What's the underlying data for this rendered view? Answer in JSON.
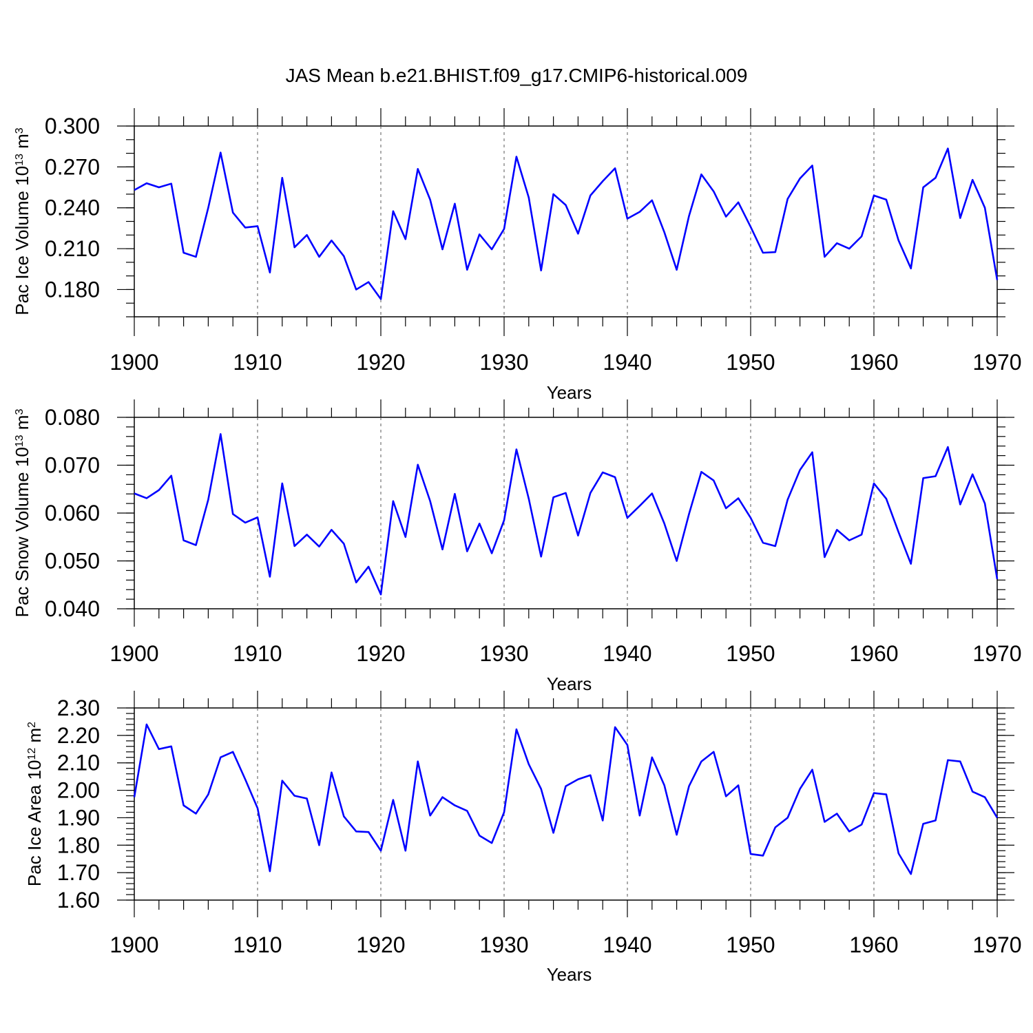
{
  "chart_data": [
    {
      "type": "line",
      "title": "JAS Mean b.e21.BHIST.f09_g17.CMIP6-historical.009",
      "xlabel": "Years",
      "ylabel": "Pac Ice Volume 10",
      "ylabel_exp": "13",
      "ylabel_unit": "m",
      "ylabel_unit_exp": "3",
      "xlim": [
        1900,
        1970
      ],
      "ylim": [
        0.16,
        0.3
      ],
      "yticks": [
        "0.300",
        "0.270",
        "0.240",
        "0.210",
        "0.180"
      ],
      "ytick_values": [
        0.3,
        0.27,
        0.24,
        0.21,
        0.18
      ],
      "xticks": [
        "1900",
        "1910",
        "1920",
        "1930",
        "1940",
        "1950",
        "1960",
        "1970"
      ],
      "x": [
        1900,
        1901,
        1902,
        1903,
        1904,
        1905,
        1906,
        1907,
        1908,
        1909,
        1910,
        1911,
        1912,
        1913,
        1914,
        1915,
        1916,
        1917,
        1918,
        1919,
        1920,
        1921,
        1922,
        1923,
        1924,
        1925,
        1926,
        1927,
        1928,
        1929,
        1930,
        1931,
        1932,
        1933,
        1934,
        1935,
        1936,
        1937,
        1938,
        1939,
        1940,
        1941,
        1942,
        1943,
        1944,
        1945,
        1946,
        1947,
        1948,
        1949,
        1950,
        1951,
        1952,
        1953,
        1954,
        1955,
        1956,
        1957,
        1958,
        1959,
        1960,
        1961,
        1962,
        1963,
        1964,
        1965,
        1966,
        1967,
        1968,
        1969,
        1970
      ],
      "values": [
        0.253,
        0.258,
        0.255,
        0.2577,
        0.207,
        0.204,
        0.24,
        0.2805,
        0.2365,
        0.2255,
        0.2265,
        0.1925,
        0.262,
        0.211,
        0.22,
        0.204,
        0.216,
        0.2045,
        0.18,
        0.1855,
        0.173,
        0.2375,
        0.217,
        0.2685,
        0.246,
        0.2095,
        0.243,
        0.1945,
        0.2205,
        0.2095,
        0.2245,
        0.2775,
        0.2475,
        0.194,
        0.25,
        0.242,
        0.221,
        0.249,
        0.2595,
        0.269,
        0.232,
        0.237,
        0.2455,
        0.222,
        0.1945,
        0.234,
        0.2645,
        0.252,
        0.2335,
        0.244,
        0.226,
        0.207,
        0.2075,
        0.2465,
        0.2615,
        0.271,
        0.204,
        0.214,
        0.21,
        0.219,
        0.249,
        0.246,
        0.216,
        0.1955,
        0.255,
        0.262,
        0.2835,
        0.2325,
        0.2605,
        0.24,
        0.187
      ]
    },
    {
      "type": "line",
      "xlabel": "Years",
      "ylabel": "Pac Snow Volume 10",
      "ylabel_exp": "13",
      "ylabel_unit": "m",
      "ylabel_unit_exp": "3",
      "xlim": [
        1900,
        1970
      ],
      "ylim": [
        0.04,
        0.08
      ],
      "yticks": [
        "0.080",
        "0.070",
        "0.060",
        "0.050",
        "0.040"
      ],
      "ytick_values": [
        0.08,
        0.07,
        0.06,
        0.05,
        0.04
      ],
      "xticks": [
        "1900",
        "1910",
        "1920",
        "1930",
        "1940",
        "1950",
        "1960",
        "1970"
      ],
      "x": [
        1900,
        1901,
        1902,
        1903,
        1904,
        1905,
        1906,
        1907,
        1908,
        1909,
        1910,
        1911,
        1912,
        1913,
        1914,
        1915,
        1916,
        1917,
        1918,
        1919,
        1920,
        1921,
        1922,
        1923,
        1924,
        1925,
        1926,
        1927,
        1928,
        1929,
        1930,
        1931,
        1932,
        1933,
        1934,
        1935,
        1936,
        1937,
        1938,
        1939,
        1940,
        1941,
        1942,
        1943,
        1944,
        1945,
        1946,
        1947,
        1948,
        1949,
        1950,
        1951,
        1952,
        1953,
        1954,
        1955,
        1956,
        1957,
        1958,
        1959,
        1960,
        1961,
        1962,
        1963,
        1964,
        1965,
        1966,
        1967,
        1968,
        1969,
        1970
      ],
      "values": [
        0.0641,
        0.0631,
        0.0648,
        0.0678,
        0.0543,
        0.0533,
        0.0628,
        0.0765,
        0.0598,
        0.058,
        0.0591,
        0.0467,
        0.0662,
        0.0531,
        0.0555,
        0.053,
        0.0565,
        0.0536,
        0.0455,
        0.0488,
        0.043,
        0.0625,
        0.055,
        0.0701,
        0.0625,
        0.0524,
        0.064,
        0.052,
        0.0578,
        0.0516,
        0.0585,
        0.0733,
        0.063,
        0.0509,
        0.0633,
        0.0642,
        0.0553,
        0.0642,
        0.0685,
        0.0675,
        0.059,
        0.0615,
        0.0641,
        0.0578,
        0.05,
        0.0598,
        0.0686,
        0.0668,
        0.061,
        0.0631,
        0.059,
        0.0538,
        0.0531,
        0.0628,
        0.069,
        0.0727,
        0.0508,
        0.0565,
        0.0543,
        0.0555,
        0.0662,
        0.063,
        0.056,
        0.0494,
        0.0673,
        0.0677,
        0.0738,
        0.0618,
        0.0681,
        0.062,
        0.0462
      ]
    },
    {
      "type": "line",
      "xlabel": "Years",
      "ylabel": "Pac Ice Area 10",
      "ylabel_exp": "12",
      "ylabel_unit": "m",
      "ylabel_unit_exp": "2",
      "xlim": [
        1900,
        1970
      ],
      "ylim": [
        1.6,
        2.3
      ],
      "yticks": [
        "2.30",
        "2.20",
        "2.10",
        "2.00",
        "1.90",
        "1.80",
        "1.70",
        "1.60"
      ],
      "ytick_values": [
        2.3,
        2.2,
        2.1,
        2.0,
        1.9,
        1.8,
        1.7,
        1.6
      ],
      "xticks": [
        "1900",
        "1910",
        "1920",
        "1930",
        "1940",
        "1950",
        "1960",
        "1970"
      ],
      "x": [
        1900,
        1901,
        1902,
        1903,
        1904,
        1905,
        1906,
        1907,
        1908,
        1909,
        1910,
        1911,
        1912,
        1913,
        1914,
        1915,
        1916,
        1917,
        1918,
        1919,
        1920,
        1921,
        1922,
        1923,
        1924,
        1925,
        1926,
        1927,
        1928,
        1929,
        1930,
        1931,
        1932,
        1933,
        1934,
        1935,
        1936,
        1937,
        1938,
        1939,
        1940,
        1941,
        1942,
        1943,
        1944,
        1945,
        1946,
        1947,
        1948,
        1949,
        1950,
        1951,
        1952,
        1953,
        1954,
        1955,
        1956,
        1957,
        1958,
        1959,
        1960,
        1961,
        1962,
        1963,
        1964,
        1965,
        1966,
        1967,
        1968,
        1969,
        1970
      ],
      "values": [
        1.975,
        2.24,
        2.15,
        2.16,
        1.945,
        1.915,
        1.985,
        2.12,
        2.14,
        2.04,
        1.935,
        1.705,
        2.035,
        1.98,
        1.97,
        1.8,
        2.065,
        1.905,
        1.85,
        1.848,
        1.78,
        1.965,
        1.78,
        2.105,
        1.908,
        1.975,
        1.945,
        1.925,
        1.835,
        1.808,
        1.92,
        2.222,
        2.095,
        2.005,
        1.845,
        2.015,
        2.04,
        2.055,
        1.89,
        2.23,
        2.165,
        1.908,
        2.12,
        2.018,
        1.838,
        2.015,
        2.105,
        2.14,
        1.978,
        2.018,
        1.768,
        1.762,
        1.865,
        1.9,
        2.005,
        2.075,
        1.885,
        1.915,
        1.85,
        1.875,
        1.99,
        1.985,
        1.77,
        1.695,
        1.878,
        1.89,
        2.11,
        2.105,
        1.995,
        1.975,
        1.9
      ]
    }
  ]
}
